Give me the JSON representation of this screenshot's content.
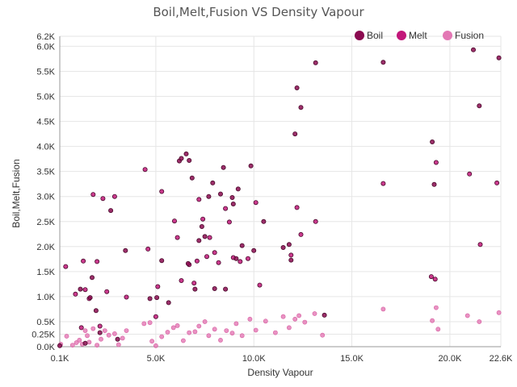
{
  "chart_data": {
    "type": "scatter",
    "title": "Boil,Melt,Fusion VS Density Vapour",
    "xlabel": "Density Vapour",
    "ylabel": "Boil,Melt,Fusion",
    "xlim": [
      100,
      22600
    ],
    "ylim": [
      0,
      6200
    ],
    "x_ticks": [
      100,
      5000,
      10000,
      15000,
      20000,
      22600
    ],
    "x_tick_labels": [
      "0.1K",
      "5.0K",
      "10.0K",
      "15.0K",
      "20.0K",
      "22.6K"
    ],
    "y_ticks": [
      0,
      250,
      500,
      1000,
      1500,
      2000,
      2500,
      3000,
      3500,
      4000,
      4500,
      5000,
      5500,
      6000,
      6200
    ],
    "y_tick_labels": [
      "0.0K",
      "0.25K",
      "0.5K",
      "1.0K",
      "1.5K",
      "2.0K",
      "2.5K",
      "3.0K",
      "3.5K",
      "4.0K",
      "4.5K",
      "5.0K",
      "5.5K",
      "6.0K",
      "6.2K"
    ],
    "grid": true,
    "legend_position": "top-right",
    "series": [
      {
        "name": "Boil",
        "color": "#8b0a50",
        "points": [
          [
            100,
            20
          ],
          [
            1150,
            1150
          ],
          [
            1400,
            70
          ],
          [
            1650,
            980
          ],
          [
            1750,
            1380
          ],
          [
            1950,
            720
          ],
          [
            2150,
            280
          ],
          [
            2700,
            2720
          ],
          [
            3050,
            150
          ],
          [
            3450,
            1920
          ],
          [
            4700,
            960
          ],
          [
            5050,
            980
          ],
          [
            5300,
            1720
          ],
          [
            5650,
            880
          ],
          [
            6200,
            3710
          ],
          [
            6300,
            3760
          ],
          [
            6550,
            3850
          ],
          [
            6650,
            1660
          ],
          [
            6700,
            3720
          ],
          [
            6850,
            3370
          ],
          [
            7000,
            1150
          ],
          [
            7200,
            2120
          ],
          [
            7350,
            2400
          ],
          [
            7500,
            2200
          ],
          [
            7700,
            3000
          ],
          [
            7900,
            3270
          ],
          [
            8000,
            1160
          ],
          [
            8300,
            3050
          ],
          [
            8450,
            3580
          ],
          [
            8550,
            1150
          ],
          [
            8900,
            2980
          ],
          [
            8950,
            2850
          ],
          [
            9100,
            1760
          ],
          [
            9200,
            3150
          ],
          [
            9400,
            2020
          ],
          [
            9850,
            3610
          ],
          [
            10000,
            1920
          ],
          [
            10500,
            2500
          ],
          [
            11500,
            1980
          ],
          [
            11800,
            2040
          ],
          [
            11900,
            1730
          ],
          [
            12100,
            4250
          ],
          [
            12200,
            5170
          ],
          [
            12400,
            4780
          ],
          [
            13150,
            5670
          ],
          [
            13600,
            630
          ],
          [
            16600,
            5680
          ],
          [
            19100,
            4090
          ],
          [
            19200,
            3240
          ],
          [
            21500,
            4810
          ],
          [
            21200,
            5930
          ],
          [
            22500,
            5770
          ]
        ]
      },
      {
        "name": "Melt",
        "color": "#c2177a",
        "points": [
          [
            400,
            1600
          ],
          [
            900,
            1050
          ],
          [
            1300,
            1710
          ],
          [
            1400,
            1140
          ],
          [
            1600,
            960
          ],
          [
            1800,
            3040
          ],
          [
            2000,
            1700
          ],
          [
            2300,
            2960
          ],
          [
            2500,
            1100
          ],
          [
            2900,
            3000
          ],
          [
            3500,
            990
          ],
          [
            4450,
            3540
          ],
          [
            4600,
            1950
          ],
          [
            5100,
            1200
          ],
          [
            5300,
            3100
          ],
          [
            5950,
            2510
          ],
          [
            6100,
            2180
          ],
          [
            6300,
            1320
          ],
          [
            6700,
            1640
          ],
          [
            6950,
            1270
          ],
          [
            7100,
            1710
          ],
          [
            7200,
            2940
          ],
          [
            7400,
            2550
          ],
          [
            7600,
            1800
          ],
          [
            7750,
            2180
          ],
          [
            8000,
            1880
          ],
          [
            8200,
            1680
          ],
          [
            8550,
            2760
          ],
          [
            8750,
            2490
          ],
          [
            8950,
            1780
          ],
          [
            9300,
            1700
          ],
          [
            9700,
            1760
          ],
          [
            10100,
            2880
          ],
          [
            10300,
            1230
          ],
          [
            11900,
            1830
          ],
          [
            12200,
            2780
          ],
          [
            12400,
            2240
          ],
          [
            13150,
            2500
          ],
          [
            16600,
            3260
          ],
          [
            19050,
            1400
          ],
          [
            19250,
            1350
          ],
          [
            19300,
            3680
          ],
          [
            21000,
            3450
          ],
          [
            21550,
            2040
          ],
          [
            22400,
            3270
          ],
          [
            5000,
            600
          ],
          [
            1200,
            380
          ],
          [
            2150,
            410
          ]
        ]
      },
      {
        "name": "Fusion",
        "color": "#e377b4",
        "points": [
          [
            150,
            50
          ],
          [
            450,
            210
          ],
          [
            750,
            30
          ],
          [
            950,
            80
          ],
          [
            1100,
            130
          ],
          [
            1250,
            50
          ],
          [
            1400,
            320
          ],
          [
            1500,
            220
          ],
          [
            1600,
            90
          ],
          [
            1800,
            360
          ],
          [
            2000,
            30
          ],
          [
            2200,
            150
          ],
          [
            2400,
            320
          ],
          [
            2600,
            230
          ],
          [
            2900,
            260
          ],
          [
            3100,
            40
          ],
          [
            3300,
            170
          ],
          [
            3500,
            320
          ],
          [
            4400,
            460
          ],
          [
            4700,
            480
          ],
          [
            4800,
            110
          ],
          [
            5000,
            20
          ],
          [
            5300,
            200
          ],
          [
            5600,
            290
          ],
          [
            5900,
            380
          ],
          [
            6100,
            420
          ],
          [
            6400,
            120
          ],
          [
            6700,
            280
          ],
          [
            7000,
            300
          ],
          [
            7200,
            410
          ],
          [
            7500,
            500
          ],
          [
            7700,
            220
          ],
          [
            8000,
            350
          ],
          [
            8300,
            130
          ],
          [
            8600,
            320
          ],
          [
            8900,
            270
          ],
          [
            9100,
            460
          ],
          [
            9400,
            220
          ],
          [
            9800,
            550
          ],
          [
            10100,
            330
          ],
          [
            10600,
            510
          ],
          [
            11100,
            280
          ],
          [
            11500,
            600
          ],
          [
            11800,
            380
          ],
          [
            12100,
            550
          ],
          [
            12300,
            620
          ],
          [
            12600,
            490
          ],
          [
            13100,
            660
          ],
          [
            13500,
            230
          ],
          [
            16600,
            750
          ],
          [
            19100,
            520
          ],
          [
            19300,
            780
          ],
          [
            19400,
            350
          ],
          [
            20900,
            620
          ],
          [
            21500,
            500
          ],
          [
            22500,
            680
          ]
        ]
      }
    ]
  }
}
